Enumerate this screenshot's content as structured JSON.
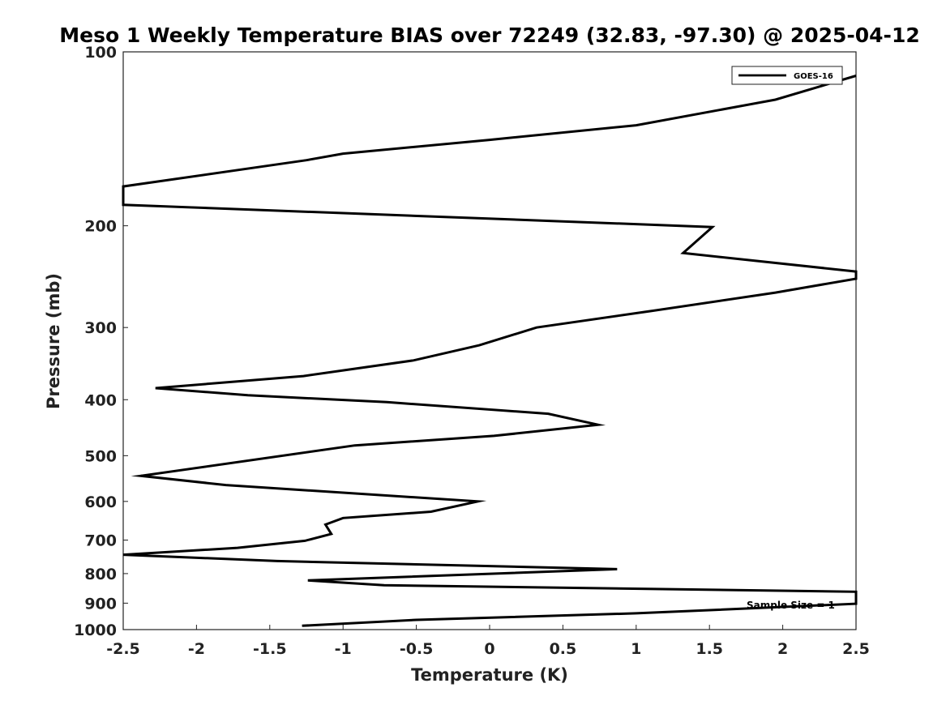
{
  "chart_data": {
    "type": "line",
    "title": "Meso 1 Weekly Temperature BIAS over 72249 (32.83, -97.30) @ 2025-04-12",
    "xlabel": "Temperature (K)",
    "ylabel": "Pressure (mb)",
    "xlim": [
      -2.5,
      2.5
    ],
    "ylim": [
      100,
      1000
    ],
    "y_scale": "log",
    "y_inverted": true,
    "x_ticks": [
      -2.5,
      -2,
      -1.5,
      -1,
      -0.5,
      0,
      0.5,
      1,
      1.5,
      2,
      2.5
    ],
    "x_tick_labels": [
      "-2.5",
      "-2",
      "-1.5",
      "-1",
      "-0.5",
      "0",
      "0.5",
      "1",
      "1.5",
      "2",
      "2.5"
    ],
    "y_ticks": [
      100,
      200,
      300,
      400,
      500,
      600,
      700,
      800,
      900,
      1000
    ],
    "y_tick_labels": [
      "100",
      "200",
      "300",
      "400",
      "500",
      "600",
      "700",
      "800",
      "900",
      "1000"
    ],
    "grid": false,
    "legend": {
      "placement": "top-right",
      "entries": [
        "GOES-16"
      ]
    },
    "annotation": "Sample Size = 1",
    "series": [
      {
        "name": "GOES-16",
        "color": "#000000",
        "points": [
          [
            2.5,
            110
          ],
          [
            1.95,
            121
          ],
          [
            1.0,
            134
          ],
          [
            0.0,
            142
          ],
          [
            -1.0,
            150
          ],
          [
            -1.25,
            154
          ],
          [
            -2.5,
            171
          ],
          [
            -2.5,
            184
          ],
          [
            1.52,
            201
          ],
          [
            1.32,
            223
          ],
          [
            2.5,
            240
          ],
          [
            2.5,
            247
          ],
          [
            1.95,
            261
          ],
          [
            1.1,
            281
          ],
          [
            0.32,
            300
          ],
          [
            -0.07,
            322
          ],
          [
            -0.52,
            342
          ],
          [
            -1.27,
            364
          ],
          [
            -2.28,
            382
          ],
          [
            -1.65,
            393
          ],
          [
            -0.7,
            404
          ],
          [
            0.4,
            423
          ],
          [
            0.74,
            442
          ],
          [
            0.03,
            462
          ],
          [
            -0.92,
            480
          ],
          [
            -2.38,
            542
          ],
          [
            -1.8,
            562
          ],
          [
            -0.08,
            600
          ],
          [
            -0.4,
            625
          ],
          [
            -1.0,
            641
          ],
          [
            -1.12,
            658
          ],
          [
            -1.08,
            683
          ],
          [
            -1.26,
            702
          ],
          [
            -1.72,
            722
          ],
          [
            -2.5,
            742
          ],
          [
            -1.45,
            761
          ],
          [
            0.87,
            786
          ],
          [
            -1.24,
            822
          ],
          [
            -0.72,
            838
          ],
          [
            2.5,
            860
          ],
          [
            2.5,
            902
          ],
          [
            1.0,
            937
          ],
          [
            -0.5,
            962
          ],
          [
            -1.28,
            985
          ]
        ]
      }
    ]
  }
}
